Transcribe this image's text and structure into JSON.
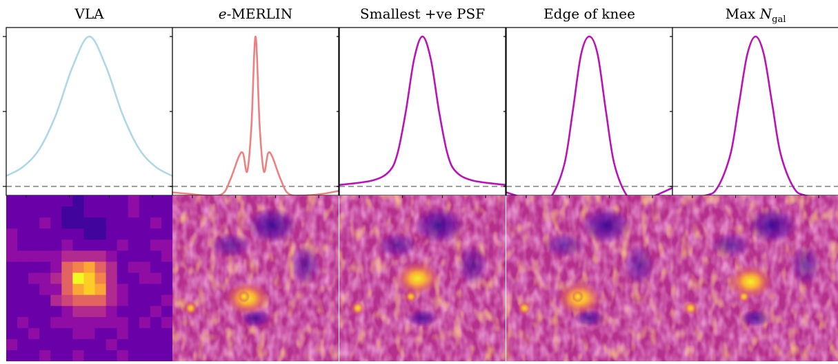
{
  "panel_titles": [
    {
      "parts": [
        {
          "text": "VLA",
          "style": "normal"
        }
      ]
    },
    {
      "parts": [
        {
          "text": "e",
          "style": "italic"
        },
        {
          "text": "-MERLIN",
          "style": "normal"
        }
      ]
    },
    {
      "parts": [
        {
          "text": "Smallest +ve PSF",
          "style": "normal"
        }
      ]
    },
    {
      "parts": [
        {
          "text": "Edge of knee",
          "style": "normal"
        }
      ]
    },
    {
      "parts": [
        {
          "text": "Max ",
          "style": "normal"
        },
        {
          "text": "N",
          "style": "italic"
        },
        {
          "text": "gal",
          "style": "sub"
        }
      ]
    }
  ],
  "chart_data": {
    "type": "line",
    "title": "",
    "description_of_axes": "no tick labels printed",
    "ylim": [
      -0.06,
      1.06
    ],
    "xlim": [
      -1,
      1
    ],
    "zero_line": {
      "y": 0,
      "style": "dashed",
      "color": "#999999"
    },
    "series": [
      {
        "color": "#add8e6",
        "x": [
          -1,
          -0.8,
          -0.6,
          -0.4,
          -0.2,
          0,
          0.2,
          0.4,
          0.6,
          0.8,
          1
        ],
        "y": [
          0.07,
          0.13,
          0.25,
          0.48,
          0.8,
          1.0,
          0.8,
          0.48,
          0.25,
          0.13,
          0.07
        ]
      },
      {
        "color": "#f08080",
        "x": [
          -1,
          -0.8,
          -0.6,
          -0.4,
          -0.3,
          -0.2,
          -0.15,
          -0.1,
          -0.05,
          0,
          0.05,
          0.1,
          0.15,
          0.2,
          0.3,
          0.4,
          0.6,
          0.8,
          1
        ],
        "y": [
          -0.04,
          -0.05,
          -0.06,
          -0.05,
          0.05,
          0.2,
          0.22,
          0.1,
          0.4,
          1.0,
          0.4,
          0.1,
          0.22,
          0.2,
          0.05,
          -0.05,
          -0.06,
          -0.05,
          -0.03
        ]
      },
      {
        "color": "#bb11bb",
        "x": [
          -1,
          -0.6,
          -0.4,
          -0.3,
          -0.2,
          -0.1,
          0,
          0.1,
          0.2,
          0.3,
          0.4,
          0.6,
          1
        ],
        "y": [
          0.01,
          0.04,
          0.1,
          0.22,
          0.5,
          0.85,
          1.0,
          0.85,
          0.5,
          0.22,
          0.1,
          0.04,
          0.01
        ]
      },
      {
        "color": "#bb11bb",
        "x": [
          -1,
          -0.6,
          -0.45,
          -0.3,
          -0.2,
          -0.1,
          0,
          0.1,
          0.2,
          0.3,
          0.45,
          0.6,
          1
        ],
        "y": [
          -0.04,
          -0.1,
          -0.06,
          0.15,
          0.5,
          0.88,
          1.0,
          0.88,
          0.5,
          0.15,
          -0.06,
          -0.1,
          -0.01
        ]
      },
      {
        "color": "#bb11bb",
        "x": [
          -1,
          -0.6,
          -0.45,
          -0.3,
          -0.2,
          -0.1,
          0,
          0.1,
          0.2,
          0.3,
          0.45,
          0.6,
          1
        ],
        "y": [
          -0.07,
          -0.06,
          0.0,
          0.22,
          0.55,
          0.88,
          1.0,
          0.88,
          0.55,
          0.22,
          0.0,
          -0.06,
          -0.07
        ]
      }
    ],
    "images": [
      {
        "type": "heatmap",
        "colormap": "plasma",
        "grid": "pixelated",
        "peak": [
          0.48,
          0.52
        ]
      },
      {
        "type": "heatmap",
        "colormap": "plasma",
        "grid": "smooth",
        "peak": [
          0.45,
          0.62
        ]
      },
      {
        "type": "heatmap",
        "colormap": "plasma",
        "grid": "smooth",
        "peak": [
          0.47,
          0.5
        ]
      },
      {
        "type": "heatmap",
        "colormap": "plasma",
        "grid": "smooth",
        "peak": [
          0.44,
          0.62
        ]
      },
      {
        "type": "heatmap",
        "colormap": "plasma",
        "grid": "smooth",
        "peak": [
          0.47,
          0.52
        ]
      }
    ]
  }
}
